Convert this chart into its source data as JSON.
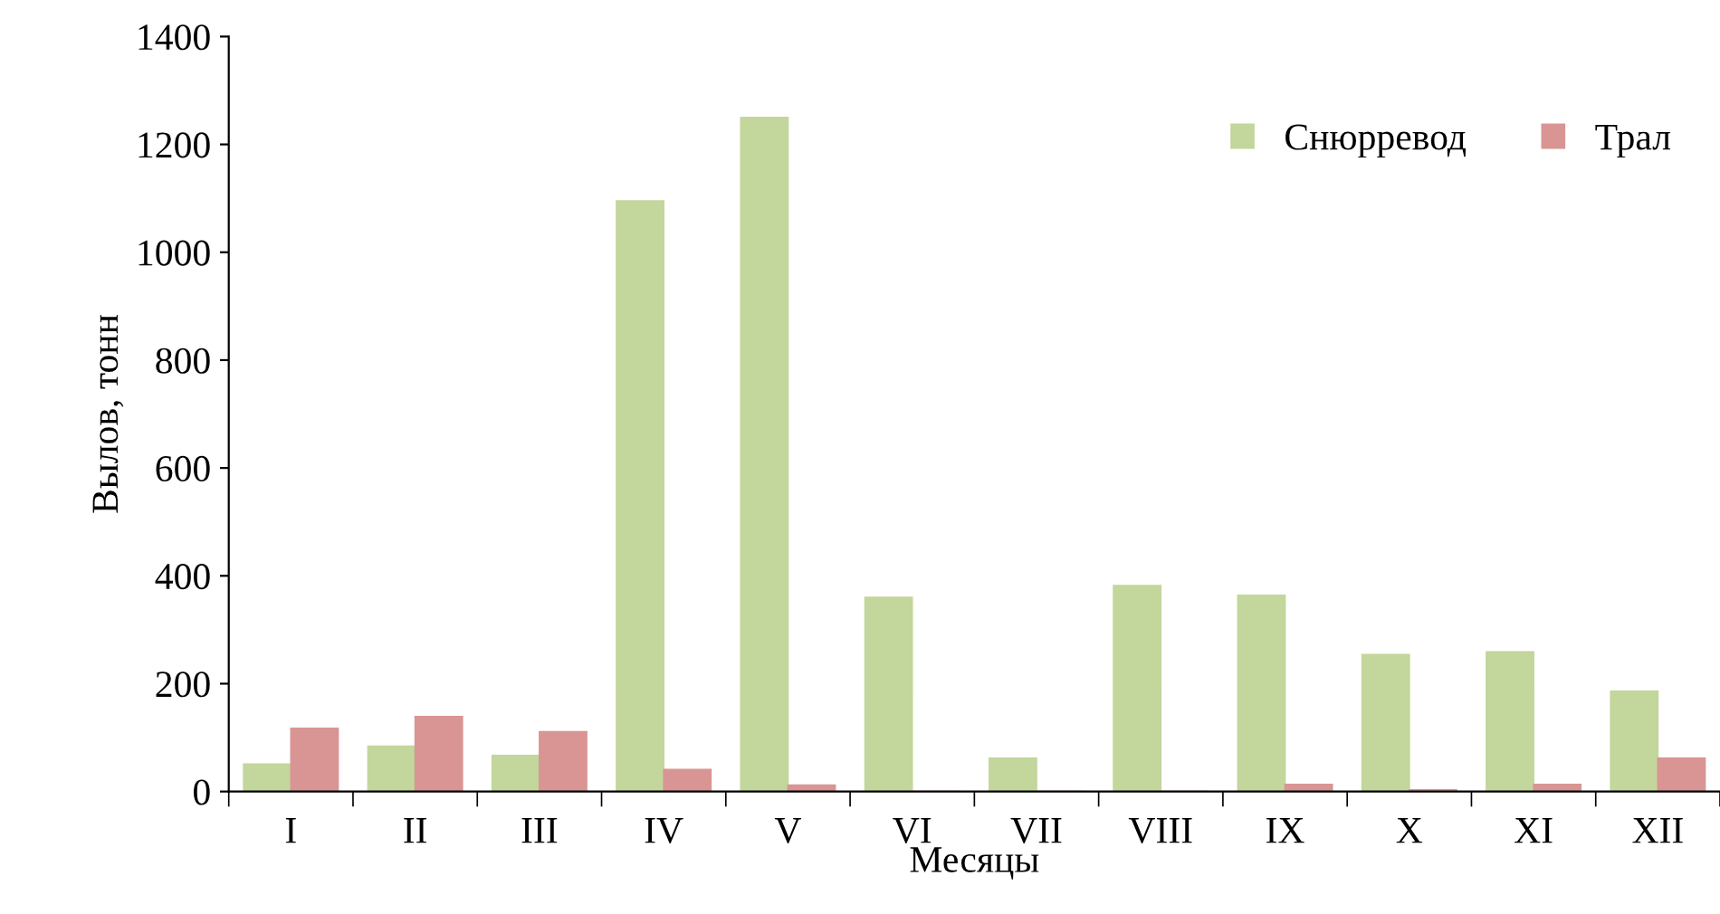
{
  "chart_data": {
    "type": "bar",
    "xlabel": "Месяцы",
    "ylabel": "Вылов, тонн",
    "categories": [
      "I",
      "II",
      "III",
      "IV",
      "V",
      "VI",
      "VII",
      "VIII",
      "IX",
      "X",
      "XI",
      "XII"
    ],
    "series": [
      {
        "name": "Снюрревод",
        "color": "#c3d69b",
        "values": [
          51,
          84,
          67,
          1095,
          1250,
          360,
          62,
          382,
          364,
          254,
          259,
          186
        ]
      },
      {
        "name": "Трал",
        "color": "#d99594",
        "values": [
          117,
          139,
          111,
          41,
          12,
          0,
          0,
          0,
          13,
          3,
          13,
          62
        ]
      }
    ],
    "ylim": [
      0,
      1400
    ],
    "yticks": [
      0,
      200,
      400,
      600,
      800,
      1000,
      1200,
      1400
    ],
    "grid": false,
    "legend": "top right"
  }
}
